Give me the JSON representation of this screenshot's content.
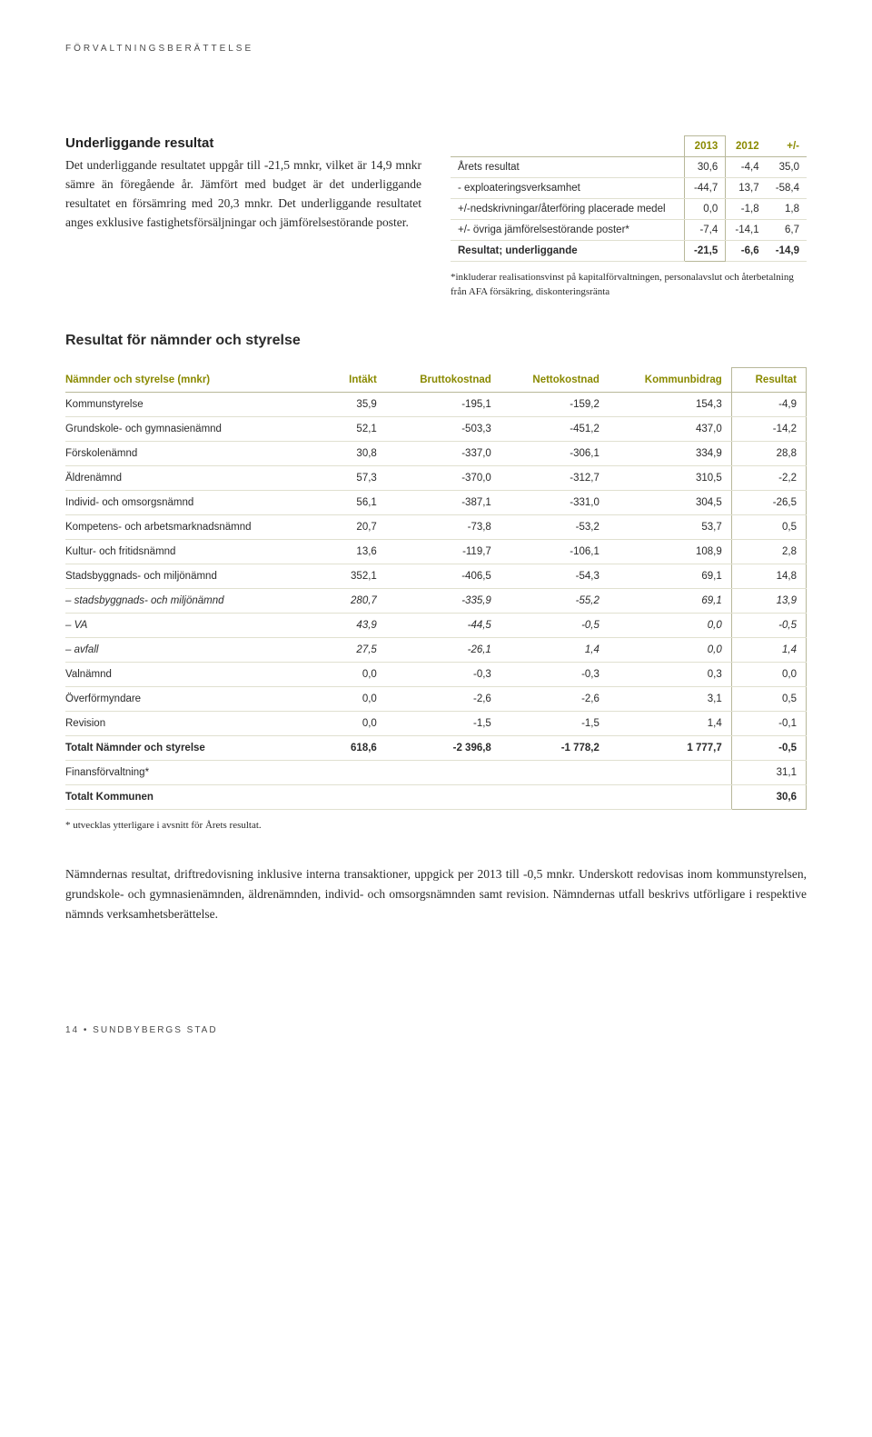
{
  "header": "FÖRVALTNINGSBERÄTTELSE",
  "section1": {
    "title": "Underliggande resultat",
    "body": "Det underliggande resultatet uppgår till -21,5 mnkr, vilket är 14,9 mnkr sämre än föregående år. Jämfört med budget är det underliggande resultatet en försämring med 20,3 mnkr. Det underliggande resultatet anges exklusive fastighetsförsäljningar och jämförelsestörande poster."
  },
  "table1": {
    "headers": [
      "",
      "2013",
      "2012",
      "+/-"
    ],
    "rows": [
      {
        "label": "Årets resultat",
        "c1": "30,6",
        "c2": "-4,4",
        "c3": "35,0",
        "bold": false
      },
      {
        "label": "- exploateringsverksamhet",
        "c1": "-44,7",
        "c2": "13,7",
        "c3": "-58,4",
        "bold": false
      },
      {
        "label": "+/-nedskrivningar/återföring placerade medel",
        "c1": "0,0",
        "c2": "-1,8",
        "c3": "1,8",
        "bold": false
      },
      {
        "label": "+/- övriga jämförelsestörande poster*",
        "c1": "-7,4",
        "c2": "-14,1",
        "c3": "6,7",
        "bold": false
      },
      {
        "label": "Resultat; underliggande",
        "c1": "-21,5",
        "c2": "-6,6",
        "c3": "-14,9",
        "bold": true
      }
    ],
    "footnote": "*inkluderar realisationsvinst på kapitalförvaltningen, personalavslut och återbetalning från AFA försäkring, diskonteringsränta"
  },
  "section2": {
    "title": "Resultat för nämnder och styrelse"
  },
  "table2": {
    "headers": [
      "Nämnder och styrelse (mnkr)",
      "Intäkt",
      "Bruttokostnad",
      "Nettokostnad",
      "Kommunbidrag",
      "Resultat"
    ],
    "rows": [
      {
        "label": "Kommunstyrelse",
        "c": [
          "35,9",
          "-195,1",
          "-159,2",
          "154,3",
          "-4,9"
        ],
        "bold": false,
        "italic": false
      },
      {
        "label": "Grundskole- och gymnasienämnd",
        "c": [
          "52,1",
          "-503,3",
          "-451,2",
          "437,0",
          "-14,2"
        ],
        "bold": false,
        "italic": false
      },
      {
        "label": "Förskolenämnd",
        "c": [
          "30,8",
          "-337,0",
          "-306,1",
          "334,9",
          "28,8"
        ],
        "bold": false,
        "italic": false
      },
      {
        "label": "Äldrenämnd",
        "c": [
          "57,3",
          "-370,0",
          "-312,7",
          "310,5",
          "-2,2"
        ],
        "bold": false,
        "italic": false
      },
      {
        "label": "Individ- och omsorgsnämnd",
        "c": [
          "56,1",
          "-387,1",
          "-331,0",
          "304,5",
          "-26,5"
        ],
        "bold": false,
        "italic": false
      },
      {
        "label": "Kompetens- och arbetsmarknadsnämnd",
        "c": [
          "20,7",
          "-73,8",
          "-53,2",
          "53,7",
          "0,5"
        ],
        "bold": false,
        "italic": false
      },
      {
        "label": "Kultur- och fritidsnämnd",
        "c": [
          "13,6",
          "-119,7",
          "-106,1",
          "108,9",
          "2,8"
        ],
        "bold": false,
        "italic": false
      },
      {
        "label": "Stadsbyggnads- och miljönämnd",
        "c": [
          "352,1",
          "-406,5",
          "-54,3",
          "69,1",
          "14,8"
        ],
        "bold": false,
        "italic": false
      },
      {
        "label": "– stadsbyggnads- och miljönämnd",
        "c": [
          "280,7",
          "-335,9",
          "-55,2",
          "69,1",
          "13,9"
        ],
        "bold": false,
        "italic": true
      },
      {
        "label": "– VA",
        "c": [
          "43,9",
          "-44,5",
          "-0,5",
          "0,0",
          "-0,5"
        ],
        "bold": false,
        "italic": true
      },
      {
        "label": "– avfall",
        "c": [
          "27,5",
          "-26,1",
          "1,4",
          "0,0",
          "1,4"
        ],
        "bold": false,
        "italic": true
      },
      {
        "label": "Valnämnd",
        "c": [
          "0,0",
          "-0,3",
          "-0,3",
          "0,3",
          "0,0"
        ],
        "bold": false,
        "italic": false
      },
      {
        "label": "Överförmyndare",
        "c": [
          "0,0",
          "-2,6",
          "-2,6",
          "3,1",
          "0,5"
        ],
        "bold": false,
        "italic": false
      },
      {
        "label": "Revision",
        "c": [
          "0,0",
          "-1,5",
          "-1,5",
          "1,4",
          "-0,1"
        ],
        "bold": false,
        "italic": false
      },
      {
        "label": "Totalt Nämnder och styrelse",
        "c": [
          "618,6",
          "-2 396,8",
          "-1 778,2",
          "1 777,7",
          "-0,5"
        ],
        "bold": true,
        "italic": false
      },
      {
        "label": "Finansförvaltning*",
        "c": [
          "",
          "",
          "",
          "",
          "31,1"
        ],
        "bold": false,
        "italic": false
      },
      {
        "label": "Totalt Kommunen",
        "c": [
          "",
          "",
          "",
          "",
          "30,6"
        ],
        "bold": true,
        "italic": false
      }
    ],
    "footnote": "* utvecklas ytterligare i avsnitt för Årets resultat."
  },
  "bottomPara": "Nämndernas resultat, driftredovisning inklusive interna transaktioner, uppgick per 2013 till -0,5 mnkr. Underskott redovisas inom kommunstyrelsen, grundskole- och gymnasienämnden, äldrenämnden, individ- och omsorgsnämnden samt revision. Nämndernas utfall beskrivs utförligare i respektive nämnds verksamhetsberättelse.",
  "footer": "14  •  SUNDBYBERGS STAD"
}
